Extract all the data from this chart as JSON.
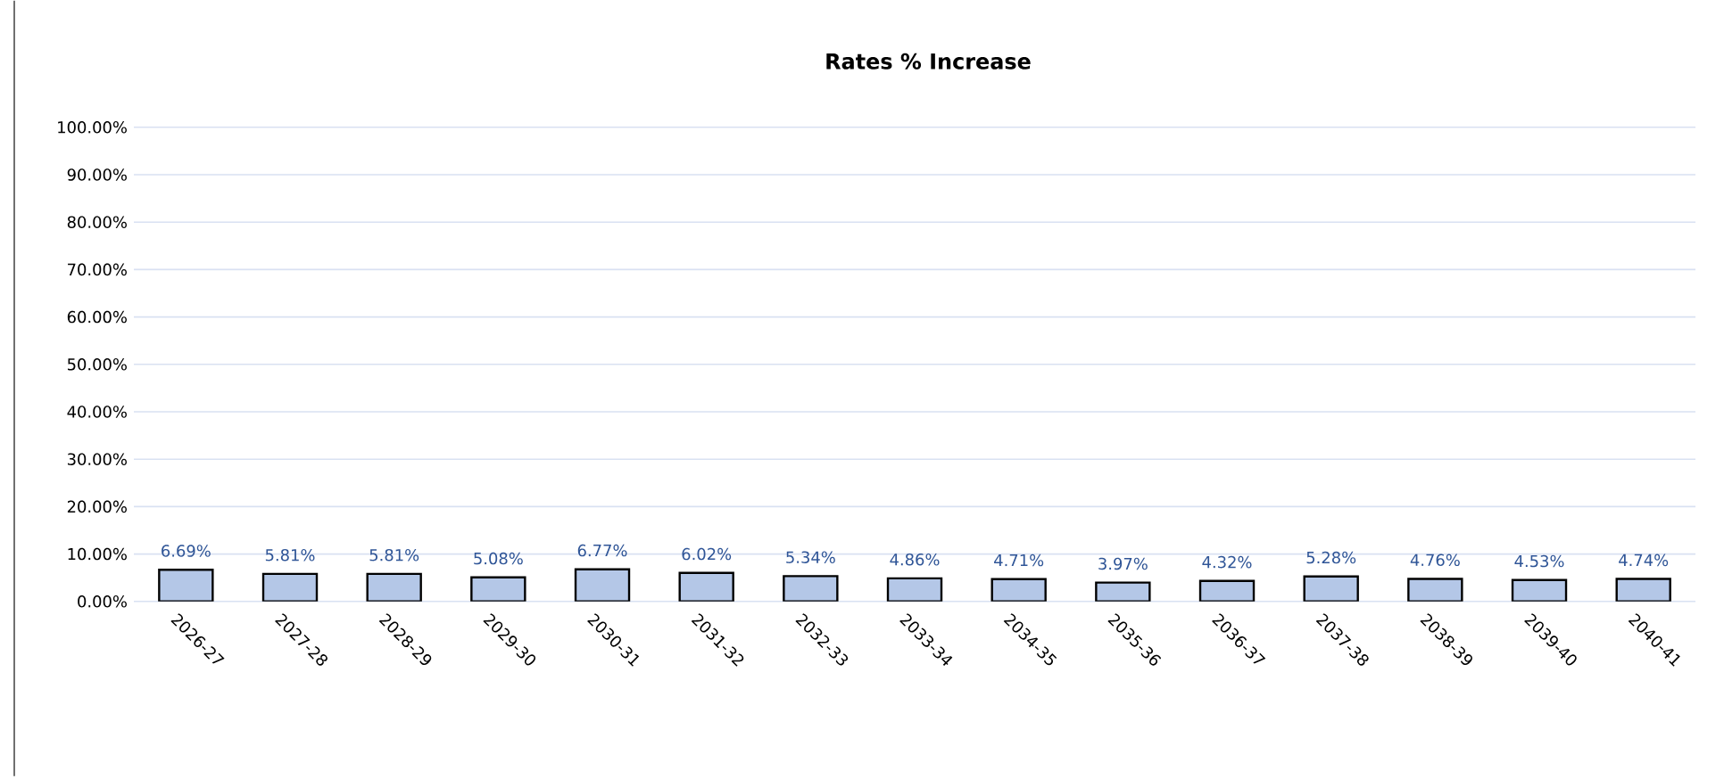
{
  "chart_data": {
    "type": "bar",
    "title": "Rates % Increase",
    "categories": [
      "2026-27",
      "2027-28",
      "2028-29",
      "2029-30",
      "2030-31",
      "2031-32",
      "2032-33",
      "2033-34",
      "2034-35",
      "2035-36",
      "2036-37",
      "2037-38",
      "2038-39",
      "2039-40",
      "2040-41"
    ],
    "values": [
      6.69,
      5.81,
      5.81,
      5.08,
      6.77,
      6.02,
      5.34,
      4.86,
      4.71,
      3.97,
      4.32,
      5.28,
      4.76,
      4.53,
      4.74
    ],
    "value_labels": [
      "6.69%",
      "5.81%",
      "5.81%",
      "5.08%",
      "6.77%",
      "6.02%",
      "5.34%",
      "4.86%",
      "4.71%",
      "3.97%",
      "4.32%",
      "5.28%",
      "4.76%",
      "4.53%",
      "4.74%"
    ],
    "color": "#b4c7e7",
    "ylim": [
      0,
      100
    ],
    "yticks": [
      {
        "value": 0,
        "label": "0.00%"
      },
      {
        "value": 10,
        "label": "10.00%"
      },
      {
        "value": 20,
        "label": "20.00%"
      },
      {
        "value": 30,
        "label": "30.00%"
      },
      {
        "value": 40,
        "label": "40.00%"
      },
      {
        "value": 50,
        "label": "50.00%"
      },
      {
        "value": 60,
        "label": "60.00%"
      },
      {
        "value": 70,
        "label": "70.00%"
      },
      {
        "value": 80,
        "label": "80.00%"
      },
      {
        "value": 90,
        "label": "90.00%"
      },
      {
        "value": 100,
        "label": "100.00%"
      }
    ],
    "grid": "y"
  }
}
